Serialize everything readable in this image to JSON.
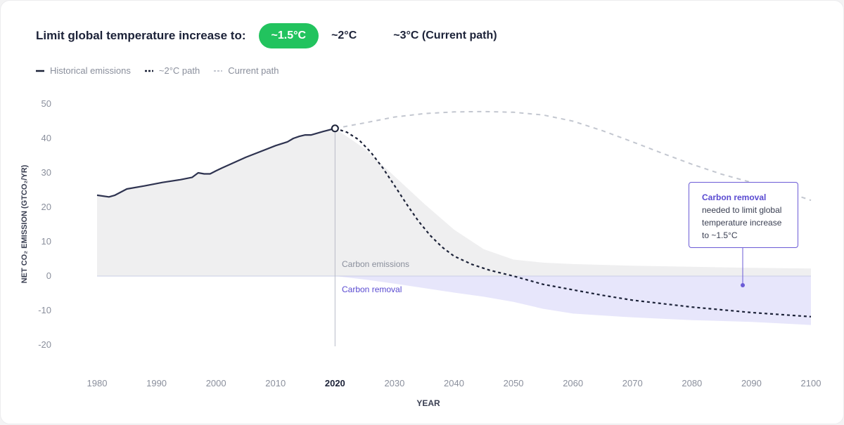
{
  "header": {
    "title": "Limit global temperature increase to:",
    "options": [
      "~1.5°C",
      "~2°C",
      "~3°C (Current path)"
    ],
    "selected_index": 0
  },
  "legend": {
    "items": [
      "Historical emissions",
      "~2°C path",
      "Current path"
    ]
  },
  "colors": {
    "accent_green": "#22c35e",
    "historical_line": "#2e3350",
    "two_degree_line": "#1c2238",
    "current_path_line": "#c3c7d0",
    "emissions_area": "#efeff0",
    "removal_area": "#e7e6fb",
    "removal_text": "#5a4bd1"
  },
  "annotations": {
    "carbon_emissions": "Carbon emissions",
    "carbon_removal": "Carbon removal",
    "callout_highlight": "Carbon removal",
    "callout_text": "needed to limit global temperature increase to ~1.5°C"
  },
  "chart_data": {
    "type": "line",
    "xlabel": "YEAR",
    "ylabel": "NET CO₂ EMISSION (GTCO₂/YR)",
    "xlim": [
      1980,
      2100
    ],
    "ylim": [
      -20,
      50
    ],
    "x_ticks": [
      1980,
      1990,
      2000,
      2010,
      2020,
      2030,
      2040,
      2050,
      2060,
      2070,
      2080,
      2090,
      2100
    ],
    "y_ticks": [
      50,
      40,
      30,
      20,
      10,
      0,
      -10,
      -20
    ],
    "highlight_year": 2020,
    "series": [
      {
        "name": "Historical emissions",
        "style": "solid",
        "x": [
          1980,
          1982,
          1983,
          1985,
          1988,
          1991,
          1994,
          1996,
          1997,
          1998,
          1999,
          2000,
          2001,
          2005,
          2010,
          2012,
          2013,
          2014,
          2015,
          2016,
          2018,
          2020
        ],
        "y": [
          23.5,
          23.0,
          23.5,
          25.3,
          26.2,
          27.2,
          28.0,
          28.7,
          30.0,
          29.7,
          29.7,
          30.6,
          31.4,
          34.5,
          37.9,
          39.0,
          40.0,
          40.6,
          41.0,
          41.0,
          42.0,
          42.9
        ]
      },
      {
        "name": "~2°C path",
        "style": "dashed",
        "x": [
          2020,
          2022,
          2024,
          2026,
          2028,
          2030,
          2032,
          2034,
          2036,
          2038,
          2040,
          2043,
          2046,
          2050,
          2055,
          2060,
          2065,
          2070,
          2080,
          2090,
          2100
        ],
        "y": [
          42.9,
          41.8,
          39.6,
          36.0,
          31.5,
          26.3,
          21.0,
          16.0,
          11.8,
          8.4,
          5.8,
          3.4,
          1.7,
          0.0,
          -2.4,
          -4.0,
          -5.6,
          -7.0,
          -9.0,
          -10.6,
          -11.8
        ]
      },
      {
        "name": "Current path",
        "style": "dashed",
        "x": [
          2020,
          2025,
          2030,
          2035,
          2040,
          2045,
          2050,
          2055,
          2060,
          2065,
          2070,
          2075,
          2080,
          2085,
          2090,
          2095,
          2100
        ],
        "y": [
          42.9,
          44.5,
          46.2,
          47.2,
          47.7,
          47.8,
          47.6,
          46.8,
          45.0,
          42.2,
          39.0,
          35.7,
          32.5,
          29.6,
          27.2,
          25.0,
          22.0
        ]
      }
    ],
    "areas": [
      {
        "name": "Carbon emissions",
        "x": [
          2020,
          2025,
          2030,
          2035,
          2040,
          2045,
          2050,
          2055,
          2060,
          2070,
          2080,
          2090,
          2100
        ],
        "y": [
          42.9,
          37.0,
          29.0,
          21.0,
          13.5,
          7.8,
          4.8,
          3.9,
          3.5,
          3.0,
          2.7,
          2.4,
          2.2
        ]
      },
      {
        "name": "Carbon removal",
        "x": [
          2020,
          2025,
          2030,
          2035,
          2040,
          2045,
          2050,
          2055,
          2060,
          2070,
          2080,
          2090,
          2100
        ],
        "y": [
          0.0,
          -1.0,
          -2.2,
          -3.5,
          -4.8,
          -6.0,
          -7.5,
          -9.5,
          -10.9,
          -12.0,
          -12.8,
          -13.3,
          -14.2
        ]
      }
    ]
  }
}
